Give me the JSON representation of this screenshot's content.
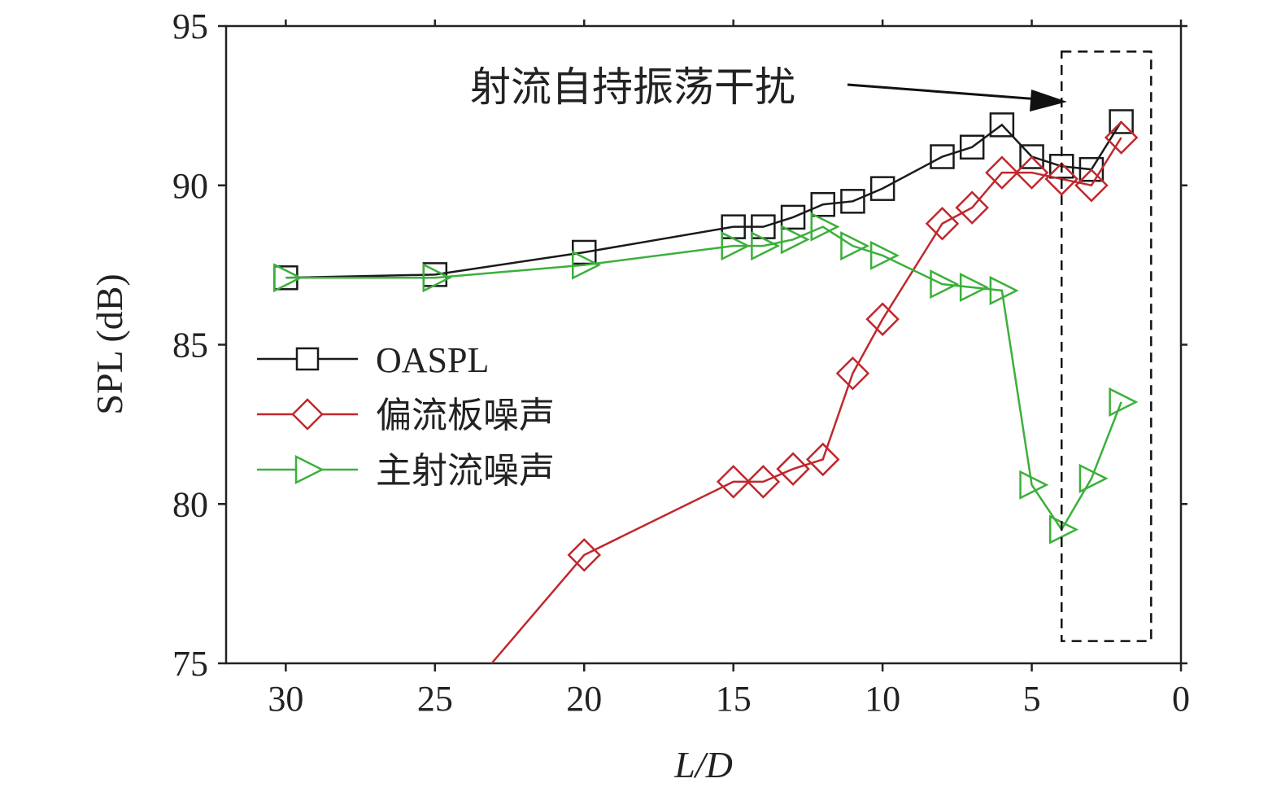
{
  "chart_data": {
    "type": "line",
    "xlabel": "L/D",
    "ylabel": "SPL (dB)",
    "xlim": [
      32,
      0
    ],
    "ylim": [
      75,
      95
    ],
    "x_ticks": [
      30,
      25,
      20,
      15,
      10,
      5,
      0
    ],
    "y_ticks": [
      75,
      80,
      85,
      90,
      95
    ],
    "legend_position": "left-middle",
    "annotation": {
      "text": "射流自持振荡干扰",
      "region_x": [
        4,
        1
      ],
      "region_y": [
        75.7,
        94.2
      ]
    },
    "series": [
      {
        "name": "OASPL",
        "color": "#1a1a1a",
        "marker": "square",
        "x": [
          30,
          25,
          20,
          15,
          14,
          13,
          12,
          11,
          10,
          8,
          7,
          6,
          5,
          4,
          3,
          2
        ],
        "y": [
          87.1,
          87.2,
          87.9,
          88.7,
          88.7,
          89.0,
          89.4,
          89.5,
          89.9,
          90.9,
          91.2,
          91.9,
          90.9,
          90.6,
          90.5,
          92.0
        ]
      },
      {
        "name": "偏流板噪声",
        "color": "#c0282d",
        "marker": "diamond",
        "x": [
          23.1,
          20,
          15,
          14,
          13,
          12,
          11,
          10,
          8,
          7,
          6,
          5,
          4,
          3,
          2
        ],
        "y": [
          75.0,
          78.4,
          80.7,
          80.7,
          81.1,
          81.4,
          84.1,
          85.8,
          88.8,
          89.3,
          90.4,
          90.4,
          90.2,
          90.0,
          91.5
        ]
      },
      {
        "name": "主射流噪声",
        "color": "#3bb03b",
        "marker": "triangle-right",
        "x": [
          30,
          25,
          20,
          15,
          14,
          13,
          12,
          11,
          10,
          8,
          7,
          6,
          5,
          4,
          3,
          2
        ],
        "y": [
          87.1,
          87.1,
          87.5,
          88.1,
          88.1,
          88.3,
          88.7,
          88.1,
          87.8,
          86.9,
          86.8,
          86.7,
          80.6,
          79.2,
          80.8,
          83.2
        ]
      }
    ]
  }
}
